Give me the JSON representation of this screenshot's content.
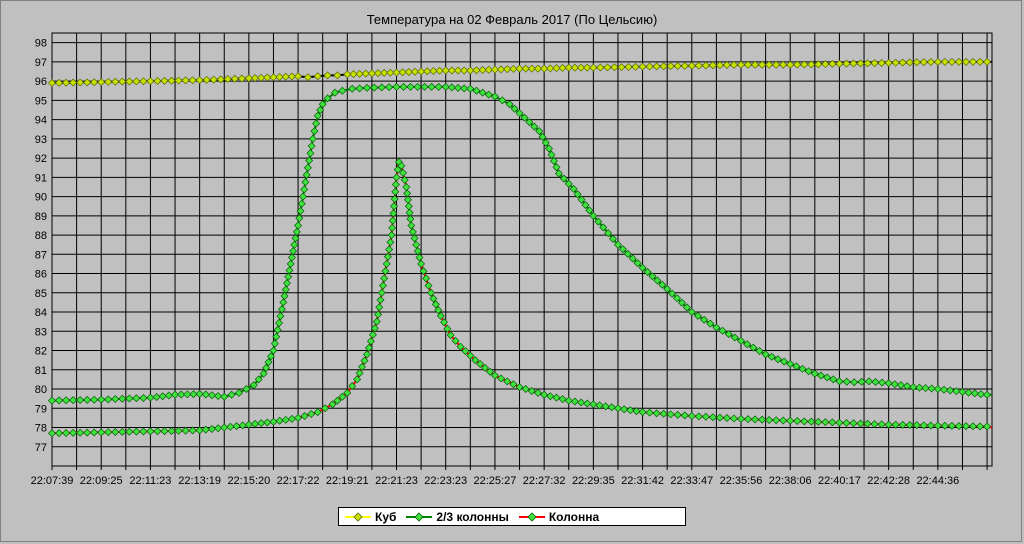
{
  "chart_data": {
    "type": "line",
    "title": "Температура на 02 Февраль 2017 (По Цельсию)",
    "xlabel": "",
    "ylabel": "",
    "ylim": [
      76,
      98.5
    ],
    "y_ticks": [
      77,
      78,
      79,
      80,
      81,
      82,
      83,
      84,
      85,
      86,
      87,
      88,
      89,
      90,
      91,
      92,
      93,
      94,
      95,
      96,
      97,
      98
    ],
    "x_tick_labels": [
      "22:07:39",
      "22:09:25",
      "22:11:23",
      "22:13:19",
      "22:15:20",
      "22:17:22",
      "22:19:21",
      "22:21:23",
      "22:23:23",
      "22:25:27",
      "22:27:32",
      "22:29:35",
      "22:31:42",
      "22:33:47",
      "22:35:56",
      "22:38:06",
      "22:40:17",
      "22:42:28",
      "22:44:36"
    ],
    "x_domain": [
      0,
      19.1
    ],
    "grid": true,
    "legend_position": "bottom",
    "series": [
      {
        "name": "Куб",
        "color": "#ffff00",
        "x": [
          0,
          1,
          2,
          3,
          4,
          4.5,
          5,
          5.2,
          5.4,
          5.6,
          5.8,
          6,
          6.5,
          7,
          7.5,
          8,
          8.5,
          9,
          9.5,
          10,
          10.5,
          11,
          12,
          13,
          14,
          15,
          16,
          17,
          18,
          19,
          19.1
        ],
        "y": [
          95.9,
          95.95,
          96.0,
          96.05,
          96.15,
          96.2,
          96.25,
          96.2,
          96.25,
          96.3,
          96.3,
          96.35,
          96.4,
          96.45,
          96.5,
          96.55,
          96.55,
          96.6,
          96.65,
          96.65,
          96.7,
          96.7,
          96.75,
          96.8,
          96.85,
          96.85,
          96.9,
          96.95,
          97.0,
          97.0,
          97.0
        ]
      },
      {
        "name": "2/3 колонны",
        "color": "#008000",
        "x": [
          0,
          1,
          2,
          2.5,
          3,
          3.5,
          3.8,
          4.1,
          4.3,
          4.5,
          4.7,
          4.85,
          5.0,
          5.1,
          5.2,
          5.3,
          5.4,
          5.5,
          5.6,
          5.75,
          5.9,
          6.1,
          6.4,
          7,
          8,
          8.5,
          9,
          9.3,
          9.6,
          9.9,
          10.1,
          10.3,
          10.6,
          11,
          11.5,
          12,
          12.5,
          13,
          13.5,
          14,
          14.5,
          15,
          15.5,
          16,
          16.3,
          16.6,
          17,
          17.5,
          18,
          18.5,
          19,
          19.1
        ],
        "y": [
          79.4,
          79.45,
          79.55,
          79.7,
          79.75,
          79.6,
          79.8,
          80.2,
          80.8,
          82.0,
          84.5,
          86.5,
          88.5,
          90.0,
          91.5,
          93.0,
          94.2,
          94.8,
          95.1,
          95.4,
          95.5,
          95.6,
          95.65,
          95.7,
          95.7,
          95.6,
          95.2,
          94.8,
          94.1,
          93.4,
          92.5,
          91.2,
          90.4,
          89.0,
          87.5,
          86.3,
          85.2,
          84.0,
          83.2,
          82.5,
          81.8,
          81.3,
          80.8,
          80.4,
          80.35,
          80.4,
          80.3,
          80.1,
          80.0,
          79.85,
          79.7,
          79.7
        ]
      },
      {
        "name": "Колонна",
        "color": "#ff0000",
        "x": [
          0,
          1,
          2,
          3,
          3.5,
          4,
          4.5,
          5,
          5.4,
          5.7,
          6.0,
          6.2,
          6.4,
          6.6,
          6.7,
          6.8,
          6.9,
          6.95,
          7.0,
          7.05,
          7.1,
          7.2,
          7.3,
          7.5,
          7.7,
          7.9,
          8.1,
          8.3,
          8.6,
          9.0,
          9.5,
          10,
          10.5,
          11,
          11.5,
          12,
          13,
          14,
          15,
          16,
          17,
          18,
          19,
          19.1
        ],
        "y": [
          77.7,
          77.75,
          77.8,
          77.85,
          78.0,
          78.15,
          78.3,
          78.5,
          78.8,
          79.2,
          79.8,
          80.5,
          81.8,
          83.5,
          85.0,
          86.5,
          88.0,
          89.5,
          91.0,
          91.8,
          91.6,
          90.5,
          88.5,
          86.5,
          85.0,
          83.8,
          82.8,
          82.2,
          81.5,
          80.7,
          80.1,
          79.7,
          79.4,
          79.2,
          79.0,
          78.8,
          78.6,
          78.45,
          78.35,
          78.25,
          78.15,
          78.1,
          78.05,
          78.0
        ]
      }
    ]
  }
}
